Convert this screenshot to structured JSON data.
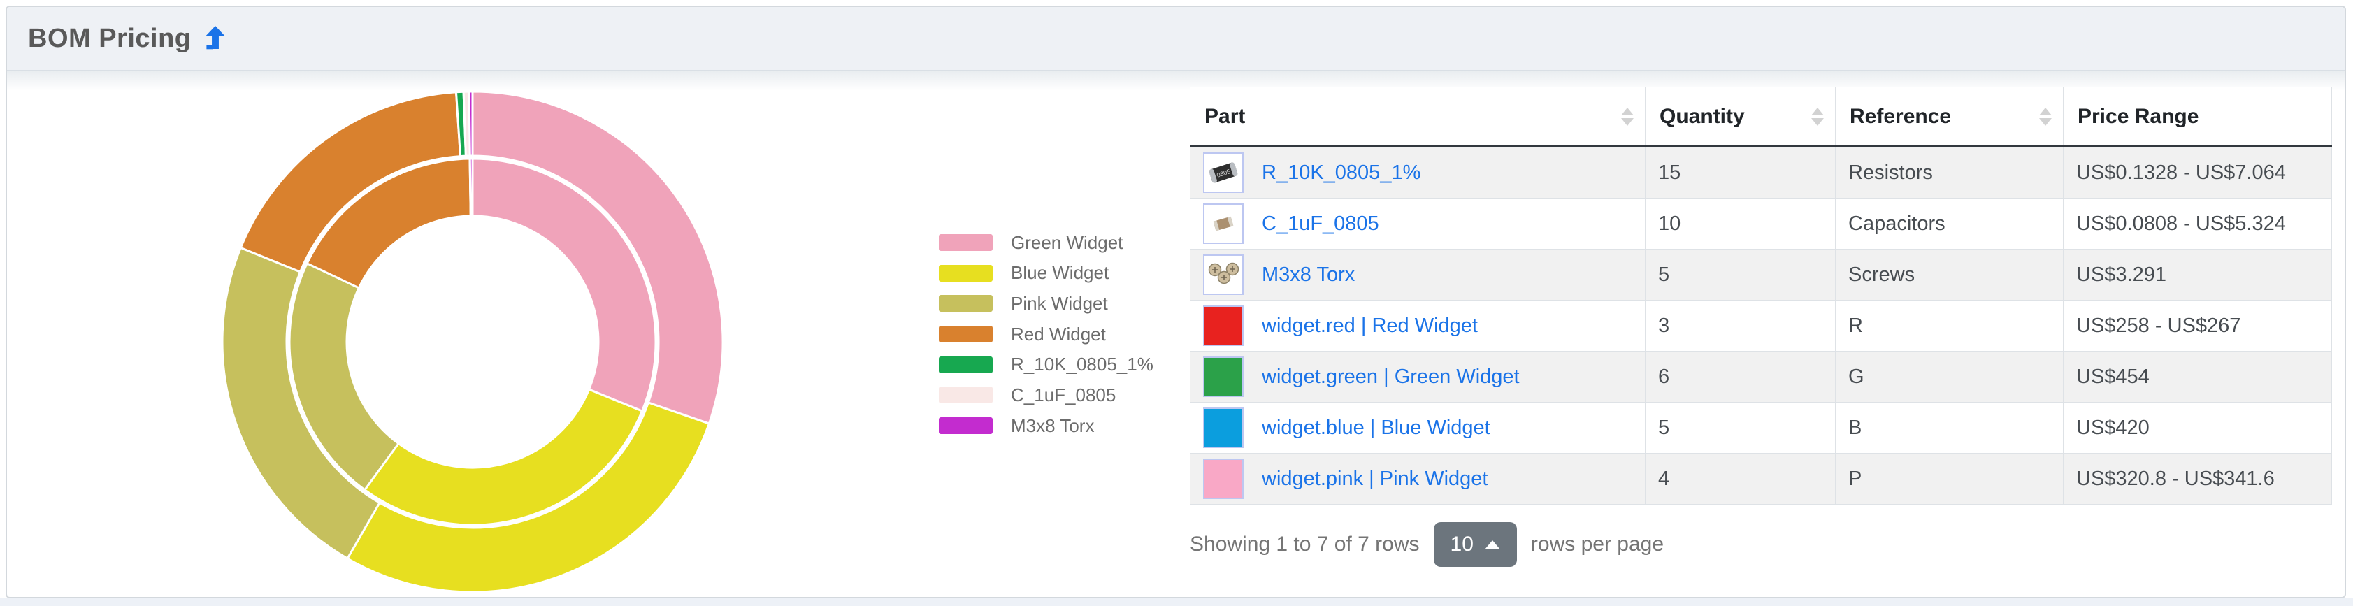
{
  "panel": {
    "title": "BOM Pricing",
    "title_icon": "level-up-arrow-icon",
    "title_icon_color": "#1a73e8"
  },
  "chart_data": {
    "type": "pie",
    "subtype": "two-ring-donut",
    "direction": "clockwise",
    "start_angle_deg": 0,
    "legend_position": "right-middle",
    "categories": [
      "Green Widget",
      "Blue Widget",
      "Pink Widget",
      "Red Widget",
      "R_10K_0805_1%",
      "C_1uF_0805",
      "M3x8 Torx"
    ],
    "colors": [
      "#f0a3ba",
      "#e7df20",
      "#c6c05d",
      "#d9812e",
      "#17a850",
      "#f9e8e6",
      "#c32ccf"
    ],
    "series": [
      {
        "name": "inner-ring-min-total-price-US$",
        "values": [
          454,
          420,
          320.8,
          258,
          0.1328,
          0.0808,
          3.291
        ]
      },
      {
        "name": "outer-ring-max-total-price-US$",
        "values": [
          454,
          420,
          341.6,
          267,
          7.064,
          5.324,
          3.291
        ]
      }
    ]
  },
  "table": {
    "columns": [
      {
        "label": "Part",
        "sortable": true
      },
      {
        "label": "Quantity",
        "sortable": true
      },
      {
        "label": "Reference",
        "sortable": true
      },
      {
        "label": "Price Range",
        "sortable": false
      }
    ],
    "rows": [
      {
        "part": "R_10K_0805_1%",
        "thumb": "resistor-photo",
        "quantity": "15",
        "reference": "Resistors",
        "price_range": "US$0.1328 - US$7.064"
      },
      {
        "part": "C_1uF_0805",
        "thumb": "capacitor-photo",
        "quantity": "10",
        "reference": "Capacitors",
        "price_range": "US$0.0808 - US$5.324"
      },
      {
        "part": "M3x8 Torx",
        "thumb": "screws-photo",
        "quantity": "5",
        "reference": "Screws",
        "price_range": "US$3.291"
      },
      {
        "part": "widget.red | Red Widget",
        "thumb": "#e8221f",
        "quantity": "3",
        "reference": "R",
        "price_range": "US$258 - US$267"
      },
      {
        "part": "widget.green | Green Widget",
        "thumb": "#2ba149",
        "quantity": "6",
        "reference": "G",
        "price_range": "US$454"
      },
      {
        "part": "widget.blue | Blue Widget",
        "thumb": "#0b9ede",
        "quantity": "5",
        "reference": "B",
        "price_range": "US$420"
      },
      {
        "part": "widget.pink | Pink Widget",
        "thumb": "#f9a8c6",
        "quantity": "4",
        "reference": "P",
        "price_range": "US$320.8 - US$341.6"
      }
    ]
  },
  "footer": {
    "showing_text": "Showing 1 to 7 of 7 rows",
    "page_size": "10",
    "rows_per_page_label": "rows per page"
  },
  "ui_colors": {
    "link": "#1a73e8",
    "page_size_button": "#6c757d",
    "header_band": "#eef1f5",
    "odd_row": "#f1f1f1"
  }
}
